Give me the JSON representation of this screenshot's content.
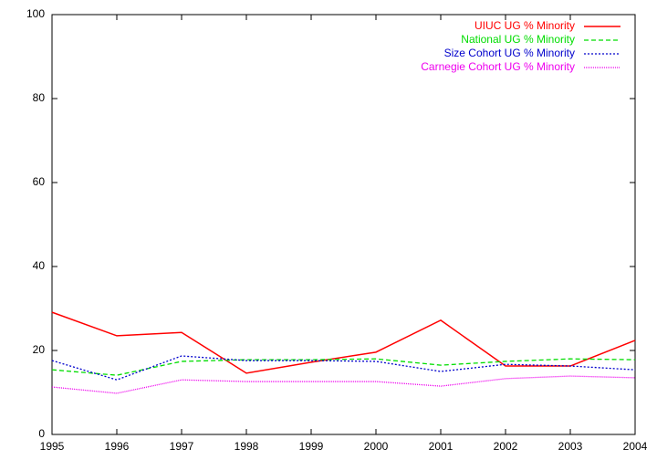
{
  "chart_data": {
    "type": "line",
    "x": [
      1995,
      1996,
      1997,
      1998,
      1999,
      2000,
      2001,
      2002,
      2003,
      2004
    ],
    "xlim": [
      1995,
      2004
    ],
    "xticks": [
      1995,
      1996,
      1997,
      1998,
      1999,
      2000,
      2001,
      2002,
      2003,
      2004
    ],
    "ylim": [
      0,
      100
    ],
    "yticks": [
      0,
      20,
      40,
      60,
      80,
      100
    ],
    "legend": "top-right",
    "series": [
      {
        "name": "UIUC UG % Minority",
        "color": "#ff0000",
        "dash": "solid",
        "values": [
          29.1,
          23.5,
          24.3,
          14.6,
          17.2,
          19.6,
          27.2,
          16.3,
          16.3,
          22.4
        ]
      },
      {
        "name": "National UG % Minority",
        "color": "#00dd00",
        "dash": "dashed",
        "values": [
          15.4,
          14.1,
          17.4,
          17.8,
          17.8,
          18.0,
          16.5,
          17.4,
          18.0,
          17.8
        ]
      },
      {
        "name": "Size Cohort UG % Minority",
        "color": "#0000cc",
        "dash": "dotted",
        "values": [
          17.6,
          13.0,
          18.7,
          17.6,
          17.6,
          17.4,
          15.0,
          16.7,
          16.3,
          15.4
        ]
      },
      {
        "name": "Carnegie Cohort UG % Minority",
        "color": "#ee00ee",
        "dash": "fine",
        "values": [
          11.3,
          9.8,
          13.0,
          12.6,
          12.6,
          12.6,
          11.5,
          13.3,
          13.9,
          13.5
        ]
      }
    ]
  }
}
